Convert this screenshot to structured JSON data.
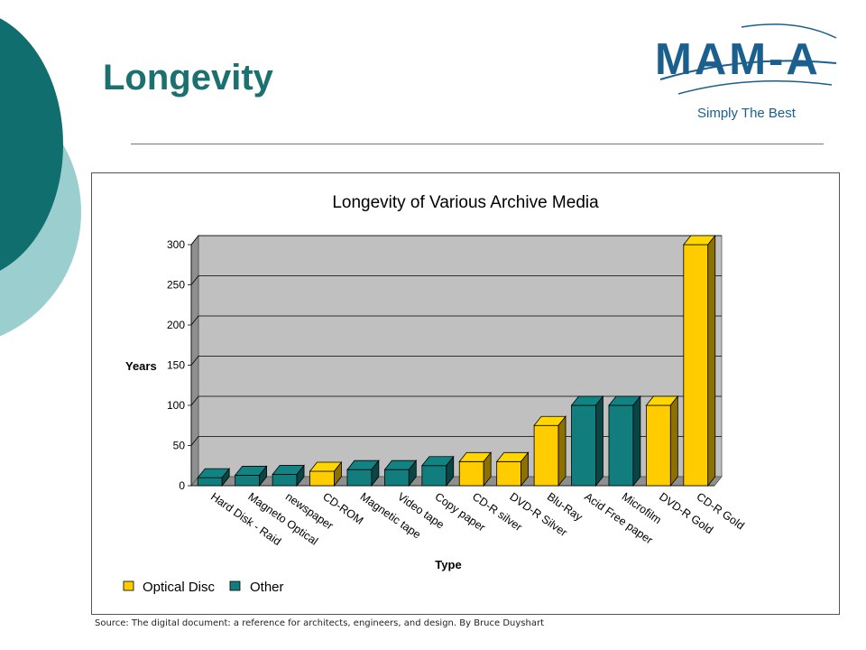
{
  "slide": {
    "title": "Longevity",
    "logo_text": "MAM-A",
    "logo_tagline": "Simply The Best",
    "source": "Source:  The digital document: a reference for architects, engineers, and design.  By Bruce Duyshart"
  },
  "colors": {
    "teal": "#1b7070",
    "light_teal": "#9bcfcf",
    "optical": "#ffcc00",
    "other": "#117d7d",
    "plot_bg": "#c0c0c0"
  },
  "chart_data": {
    "type": "bar",
    "title": "Longevity of Various Archive Media",
    "xlabel": "Type",
    "ylabel": "Years",
    "ylim": [
      0,
      300
    ],
    "yticks": [
      0,
      50,
      100,
      150,
      200,
      250,
      300
    ],
    "grid": true,
    "legend_position": "bottom-left",
    "categories": [
      "Hard Disk - Raid",
      "Magneto Optical",
      "newspaper",
      "CD-ROM",
      "Magnetic tape",
      "Video tape",
      "Copy paper",
      "CD-R silver",
      "DVD-R Silver",
      "Blu-Ray",
      "Acid Free paper",
      "Microfilm",
      "DVD-R Gold",
      "CD-R Gold"
    ],
    "values": [
      10,
      13,
      14,
      18,
      20,
      20,
      25,
      30,
      30,
      75,
      100,
      100,
      100,
      300
    ],
    "groups": [
      "Other",
      "Other",
      "Other",
      "Optical Disc",
      "Other",
      "Other",
      "Other",
      "Optical Disc",
      "Optical Disc",
      "Optical Disc",
      "Other",
      "Other",
      "Optical Disc",
      "Optical Disc"
    ],
    "legend": [
      "Optical Disc",
      "Other"
    ]
  }
}
